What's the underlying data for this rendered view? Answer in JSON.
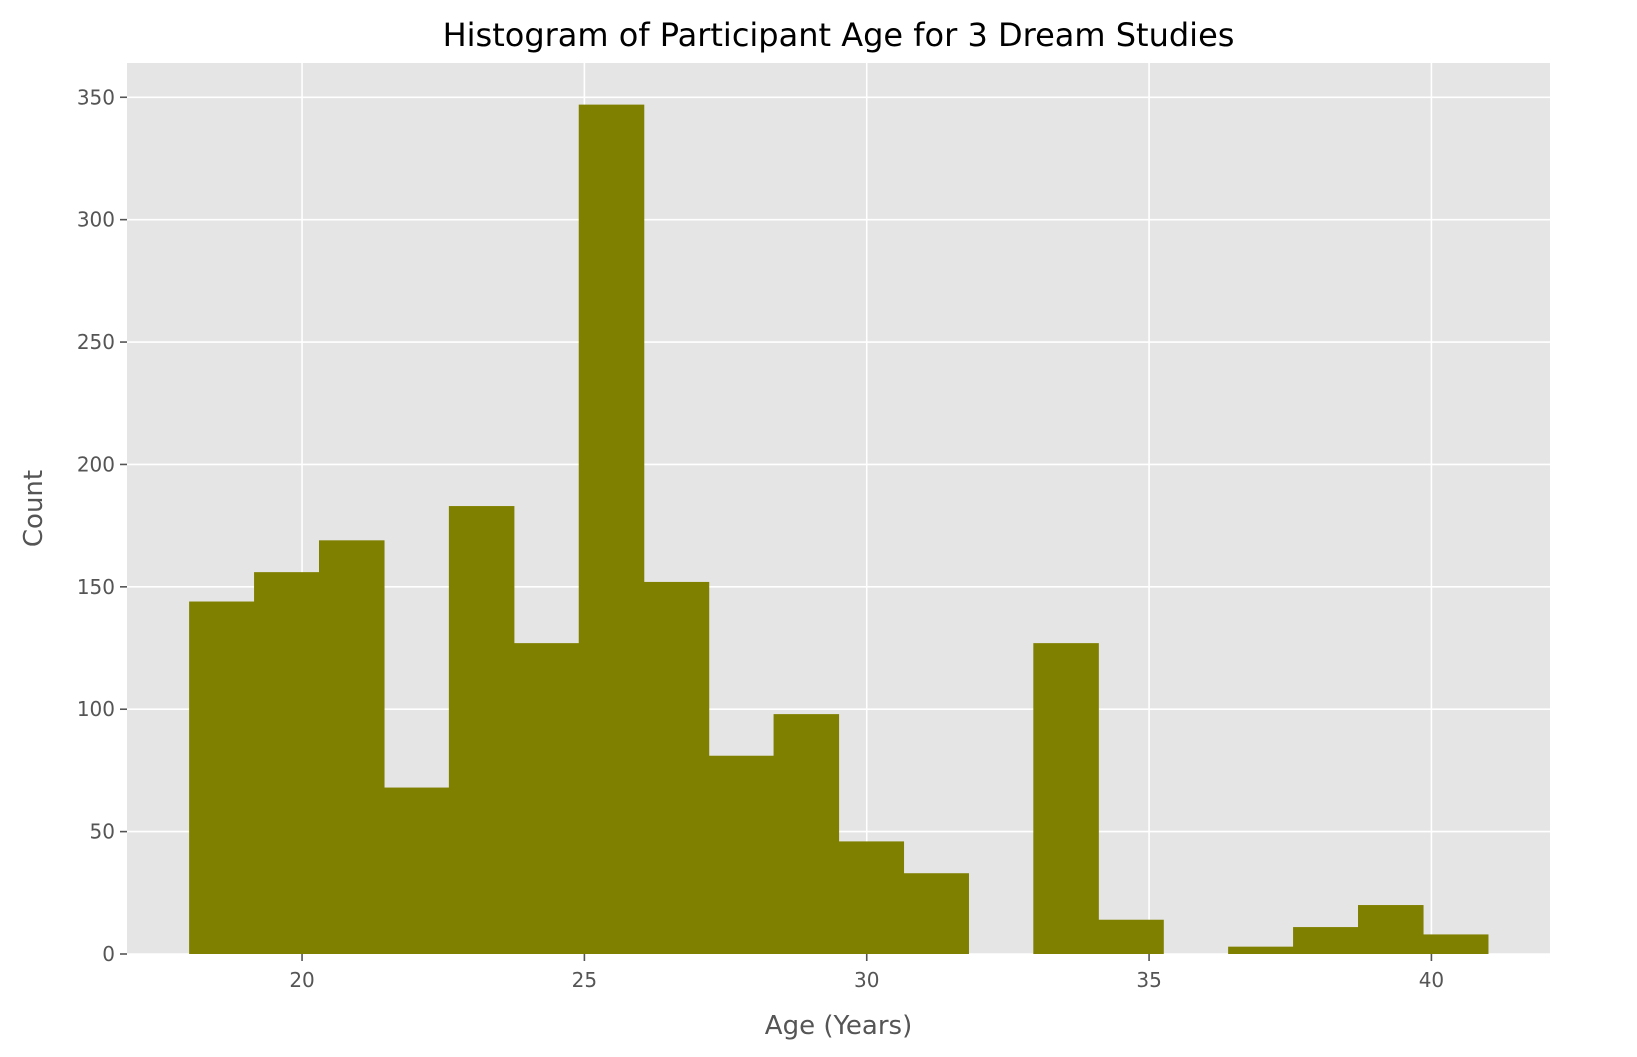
{
  "chart_data": {
    "type": "bar",
    "title": "Histogram of Participant Age for 3 Dream Studies",
    "xlabel": "Age (Years)",
    "ylabel": "Count",
    "xlim": [
      16.9,
      42.1
    ],
    "ylim": [
      0,
      364
    ],
    "x_ticks": [
      20,
      25,
      30,
      35,
      40
    ],
    "y_ticks": [
      0,
      50,
      100,
      150,
      200,
      250,
      300,
      350
    ],
    "grid": true,
    "legend": "none",
    "bin_edges": [
      18.0,
      19.15,
      20.3,
      21.45,
      22.6,
      23.75,
      24.9,
      26.05,
      27.2,
      28.35,
      29.5,
      30.65,
      31.8,
      32.95,
      34.1,
      35.25,
      36.4,
      37.55,
      38.7,
      39.85,
      41.0
    ],
    "values": [
      144,
      156,
      169,
      68,
      183,
      127,
      347,
      152,
      81,
      98,
      46,
      33,
      0,
      127,
      14,
      0,
      3,
      11,
      20,
      8
    ],
    "colors": {
      "bar": "#808000",
      "plot_background": "#e5e5e5",
      "grid": "#ffffff",
      "tick_text": "#555555",
      "tick_mark": "#555555",
      "title": "#000000"
    }
  }
}
